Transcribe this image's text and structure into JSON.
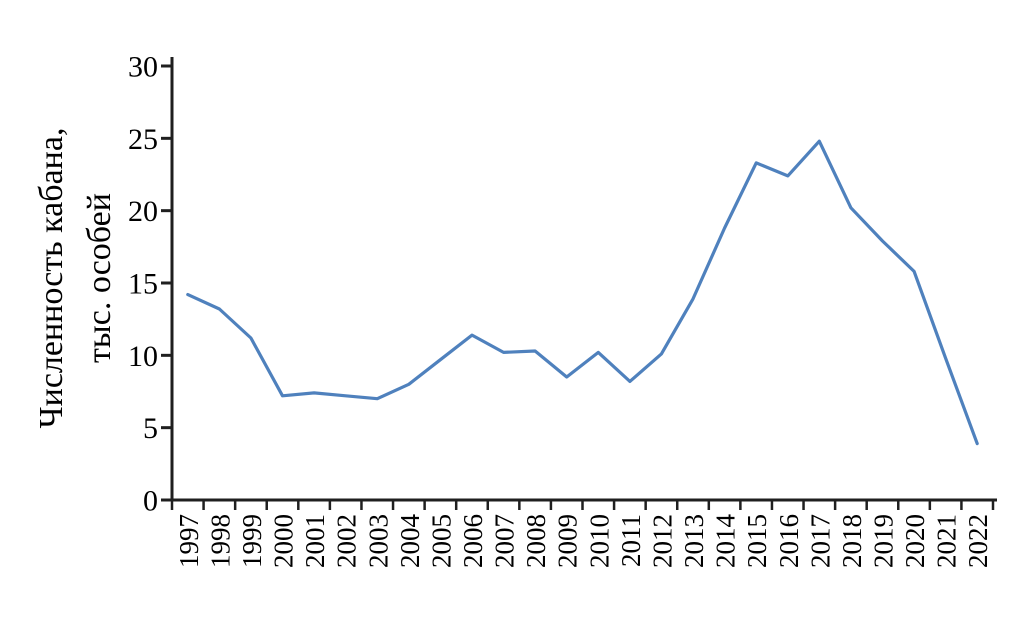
{
  "chart_data": {
    "type": "line",
    "title": "",
    "ylabel": "Численность кабана, тыс. особей",
    "ylabel_lines": [
      "Численность кабана,",
      "тыс. особей"
    ],
    "xlabel": "",
    "categories": [
      "1997",
      "1998",
      "1999",
      "2000",
      "2001",
      "2002",
      "2003",
      "2004",
      "2005",
      "2006",
      "2007",
      "2008",
      "2009",
      "2010",
      "2011",
      "2012",
      "2013",
      "2014",
      "2015",
      "2016",
      "2017",
      "2018",
      "2019",
      "2020",
      "2021",
      "2022"
    ],
    "series": [
      {
        "name": "Численность кабана",
        "values": [
          14.2,
          13.2,
          11.2,
          7.2,
          7.4,
          7.2,
          7.0,
          8.0,
          9.7,
          11.4,
          10.2,
          10.3,
          8.5,
          10.2,
          8.2,
          10.1,
          13.9,
          18.8,
          23.3,
          22.4,
          24.8,
          20.2,
          17.9,
          15.8,
          9.8,
          3.9
        ]
      }
    ],
    "y_ticks": [
      0,
      5,
      10,
      15,
      20,
      25,
      30
    ],
    "ylim": [
      0,
      30
    ],
    "grid": false,
    "legend_position": "none",
    "x_label_rotation_deg": -90,
    "line_color": "#4f81bd",
    "axis_color": "#1f1f1f",
    "text_color": "#000000",
    "background_color": "#ffffff"
  }
}
